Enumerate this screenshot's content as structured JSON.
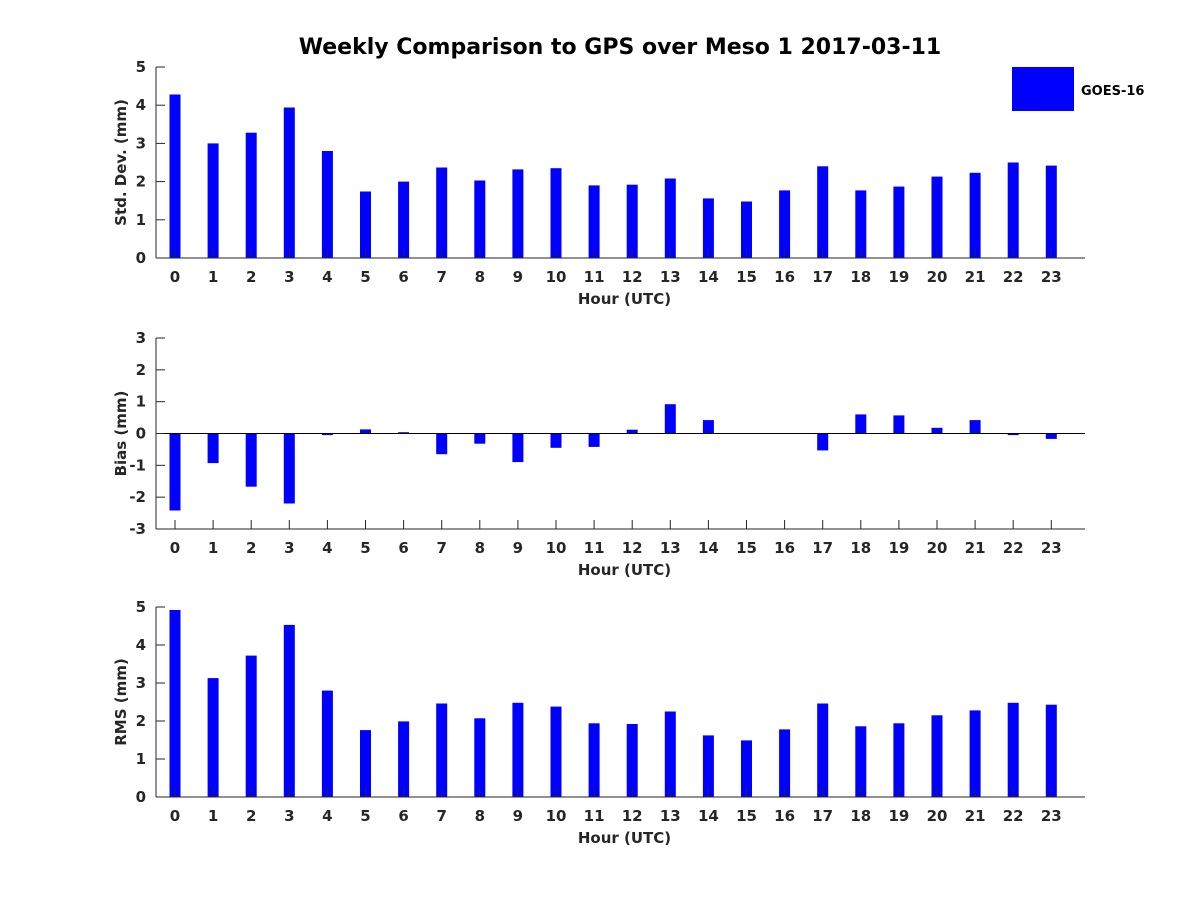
{
  "chart_data": [
    {
      "type": "bar",
      "title": "Weekly Comparison to GPS over Meso 1 2017-03-11",
      "xlabel": "Hour (UTC)",
      "ylabel": "Std. Dev. (mm)",
      "categories": [
        "0",
        "1",
        "2",
        "3",
        "4",
        "5",
        "6",
        "7",
        "8",
        "9",
        "10",
        "11",
        "12",
        "13",
        "14",
        "15",
        "16",
        "17",
        "18",
        "19",
        "20",
        "21",
        "22",
        "23"
      ],
      "series": [
        {
          "name": "GOES-16",
          "values": [
            4.28,
            3.0,
            3.28,
            3.94,
            2.8,
            1.74,
            2.0,
            2.37,
            2.03,
            2.32,
            2.35,
            1.9,
            1.92,
            2.08,
            1.56,
            1.48,
            1.77,
            2.4,
            1.77,
            1.87,
            2.13,
            2.23,
            2.5,
            2.42
          ]
        }
      ],
      "ylim": [
        0,
        5
      ],
      "yticks": [
        0,
        1,
        2,
        3,
        4,
        5
      ],
      "legend": "top-right"
    },
    {
      "type": "bar",
      "title": "",
      "xlabel": "Hour (UTC)",
      "ylabel": "Bias (mm)",
      "categories": [
        "0",
        "1",
        "2",
        "3",
        "4",
        "5",
        "6",
        "7",
        "8",
        "9",
        "10",
        "11",
        "12",
        "13",
        "14",
        "15",
        "16",
        "17",
        "18",
        "19",
        "20",
        "21",
        "22",
        "23"
      ],
      "series": [
        {
          "name": "GOES-16",
          "values": [
            -2.42,
            -0.93,
            -1.67,
            -2.2,
            -0.05,
            0.13,
            0.04,
            -0.65,
            -0.32,
            -0.9,
            -0.45,
            -0.42,
            0.12,
            0.92,
            0.42,
            0.0,
            0.0,
            -0.53,
            0.6,
            0.57,
            0.18,
            0.42,
            -0.05,
            -0.17
          ]
        }
      ],
      "ylim": [
        -3,
        3
      ],
      "yticks": [
        -3,
        -2,
        -1,
        0,
        1,
        2,
        3
      ]
    },
    {
      "type": "bar",
      "title": "",
      "xlabel": "Hour (UTC)",
      "ylabel": "RMS (mm)",
      "categories": [
        "0",
        "1",
        "2",
        "3",
        "4",
        "5",
        "6",
        "7",
        "8",
        "9",
        "10",
        "11",
        "12",
        "13",
        "14",
        "15",
        "16",
        "17",
        "18",
        "19",
        "20",
        "21",
        "22",
        "23"
      ],
      "series": [
        {
          "name": "GOES-16",
          "values": [
            4.92,
            3.13,
            3.72,
            4.53,
            2.8,
            1.76,
            1.99,
            2.46,
            2.07,
            2.48,
            2.38,
            1.94,
            1.92,
            2.25,
            1.62,
            1.49,
            1.78,
            2.46,
            1.86,
            1.94,
            2.15,
            2.28,
            2.48,
            2.43
          ]
        }
      ],
      "ylim": [
        0,
        5
      ],
      "yticks": [
        0,
        1,
        2,
        3,
        4,
        5
      ]
    }
  ],
  "legend": {
    "label": "GOES-16"
  },
  "colors": {
    "bar": "#0000ff",
    "axis": "#262626"
  }
}
